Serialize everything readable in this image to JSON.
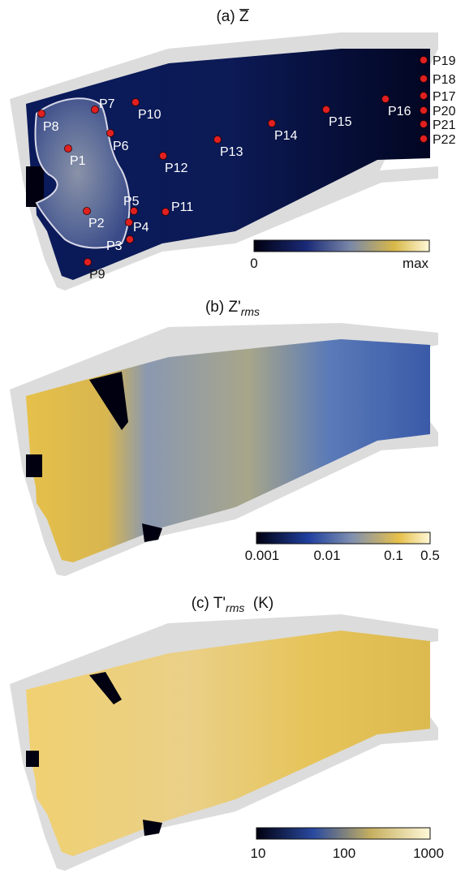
{
  "panels": [
    {
      "id": "a",
      "prefix": "(a) ",
      "symbol": "Z",
      "suffix": "",
      "unit": "",
      "colorbar": {
        "ticks": [
          "0",
          "max"
        ]
      }
    },
    {
      "id": "b",
      "prefix": "(b) ",
      "symbol": "Z'",
      "suffix": "rms",
      "unit": "",
      "colorbar": {
        "ticks": [
          "0.001",
          "0.01",
          "0.1",
          "0.5"
        ]
      }
    },
    {
      "id": "c",
      "prefix": "(c) ",
      "symbol": "T'",
      "suffix": "rms",
      "unit": "  (K)",
      "colorbar": {
        "ticks": [
          "10",
          "100",
          "1000"
        ]
      }
    }
  ],
  "probes": [
    "P1",
    "P2",
    "P3",
    "P4",
    "P5",
    "P6",
    "P7",
    "P8",
    "P9",
    "P10",
    "P11",
    "P12",
    "P13",
    "P14",
    "P15",
    "P16",
    "P17",
    "P18",
    "P19",
    "P20",
    "P21",
    "P22"
  ],
  "colors": {
    "wall": "#dcdcdc",
    "dark": "#000010",
    "navy": "#0a1648",
    "blue": "#3a5aa8",
    "gold": "#e6c04a",
    "cream": "#fff8d8",
    "probe": "#e02020"
  }
}
